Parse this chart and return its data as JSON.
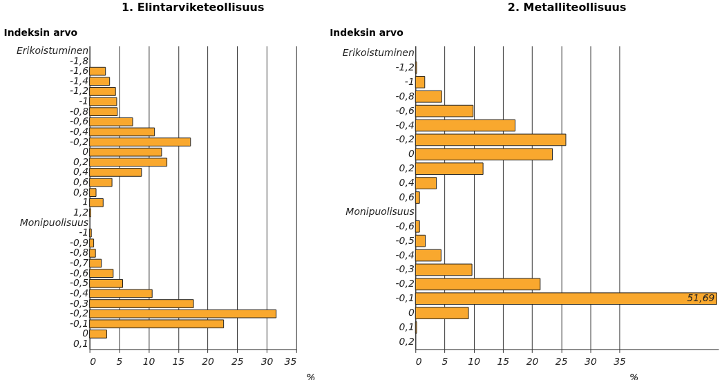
{
  "chart_data": [
    {
      "type": "bar",
      "orientation": "horizontal",
      "title": "1. Elintarviketeollisuus",
      "ylabel": "Indeksin arvo",
      "xlabel": "%",
      "color": "#f9a82e",
      "grid": "x",
      "categories": [
        "Erikoistuminen",
        "-1,8",
        "-1,6",
        "-1,4",
        "-1,2",
        "-1",
        "-0,8",
        "-0,6",
        "-0,4",
        "-0,2",
        "0",
        "0,2",
        "0,4",
        "0,6",
        "0,8",
        "1",
        "1,2",
        "Monipuolisuus",
        "-1",
        "-0,9",
        "-0,8",
        "-0,7",
        "-0,6",
        "-0,5",
        "-0,4",
        "-0,3",
        "-0,2",
        "-0,1",
        "0",
        "0,1"
      ],
      "values": [
        null,
        null,
        2.7,
        3.4,
        4.4,
        4.6,
        4.7,
        7.3,
        11.0,
        17.1,
        12.2,
        13.1,
        8.8,
        3.8,
        1.1,
        2.3,
        0.2,
        null,
        0.3,
        0.7,
        1.0,
        2.0,
        4.0,
        5.6,
        10.6,
        17.6,
        31.6,
        22.7,
        2.9,
        null
      ],
      "xlim": [
        0,
        35
      ],
      "xticks": [
        0,
        5,
        10,
        15,
        20,
        25,
        30,
        35
      ]
    },
    {
      "type": "bar",
      "orientation": "horizontal",
      "title": "2. Metalliteollisuus",
      "ylabel": "Indeksin arvo",
      "xlabel": "%",
      "color": "#f9a82e",
      "grid": "x",
      "categories": [
        "Erikoistuminen",
        "-1,2",
        "-1",
        "-0,8",
        "-0,6",
        "-0,4",
        "-0,2",
        "0",
        "0,2",
        "0,4",
        "0,6",
        "Monipuolisuus",
        "-0,6",
        "-0,5",
        "-0,4",
        "-0,3",
        "-0,2",
        "-0,1",
        "0",
        "0,1",
        "0,2"
      ],
      "values": [
        null,
        0.2,
        1.6,
        4.5,
        9.9,
        17.1,
        25.8,
        23.5,
        11.6,
        3.6,
        0.7,
        null,
        0.7,
        1.7,
        4.4,
        9.7,
        21.4,
        51.69,
        9.1,
        0.2,
        null
      ],
      "value_labels": [
        null,
        null,
        null,
        null,
        null,
        null,
        null,
        null,
        null,
        null,
        null,
        null,
        null,
        null,
        null,
        null,
        null,
        "51,69",
        null,
        null,
        null
      ],
      "xlim": [
        0,
        52
      ],
      "xticks": [
        0,
        5,
        10,
        15,
        20,
        25,
        30,
        35
      ]
    }
  ]
}
